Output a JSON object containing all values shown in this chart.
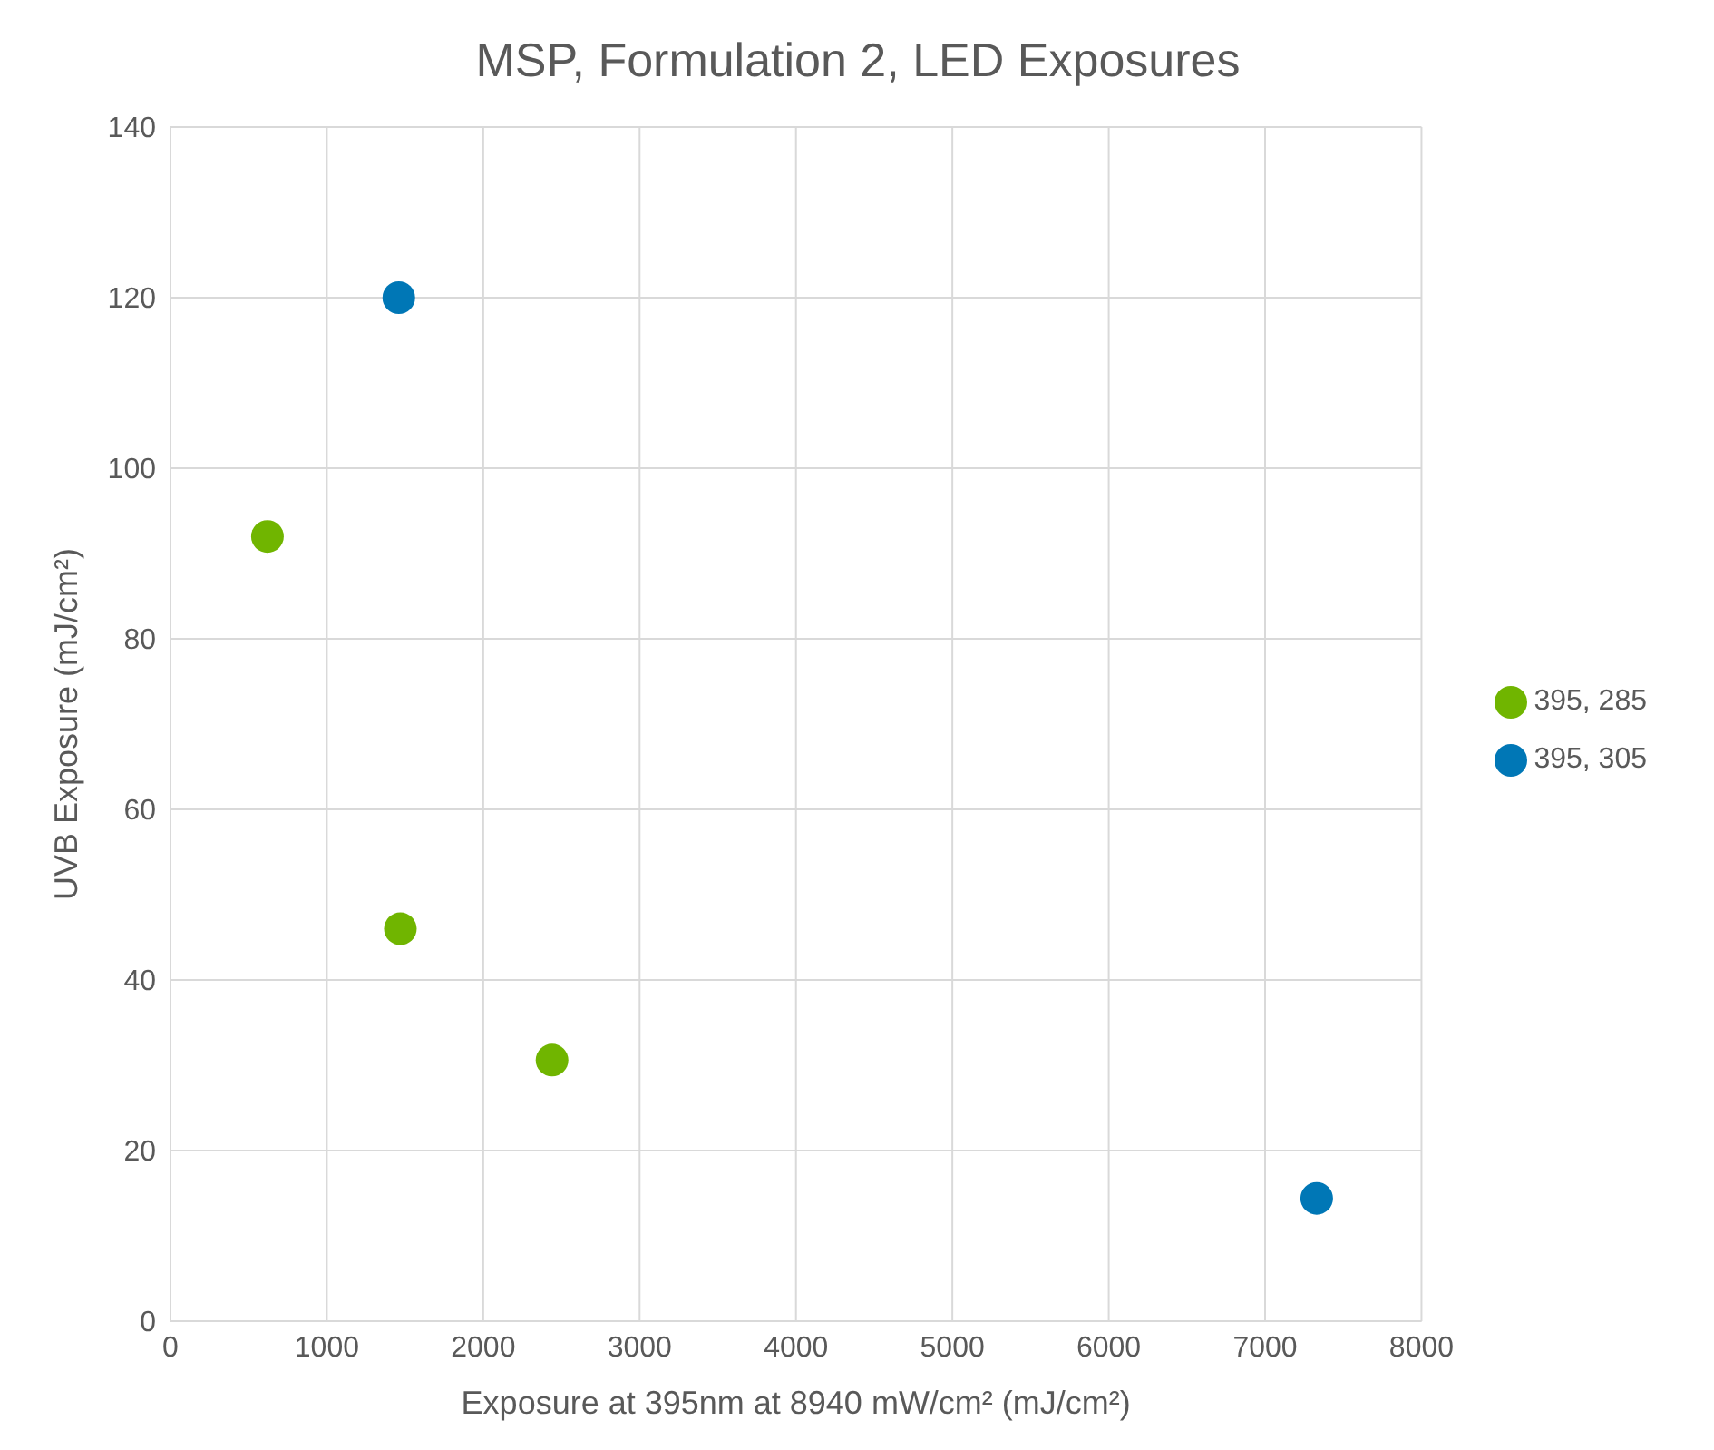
{
  "chart_data": {
    "type": "scatter",
    "title": "MSP, Formulation 2, LED Exposures",
    "xlabel": "Exposure at 395nm at 8940 mW/cm² (mJ/cm²)",
    "ylabel": "UVB Exposure (mJ/cm²)",
    "series": [
      {
        "name": "395, 305",
        "color": "#0077b6",
        "x": [
          1460,
          7330
        ],
        "values": [
          120,
          14.4
        ]
      },
      {
        "name": "395, 285",
        "color": "#70b500",
        "x": [
          620,
          1470,
          2440
        ],
        "values": [
          92,
          46,
          30.6
        ]
      }
    ],
    "xlim": [
      0,
      8000
    ],
    "xticks": [
      0,
      1000,
      2000,
      3000,
      4000,
      5000,
      6000,
      7000,
      8000
    ],
    "ylim": [
      0,
      140
    ],
    "yticks": [
      0,
      20,
      40,
      60,
      80,
      100,
      120,
      140
    ],
    "grid": true,
    "legend": "right",
    "marker": "circle"
  }
}
